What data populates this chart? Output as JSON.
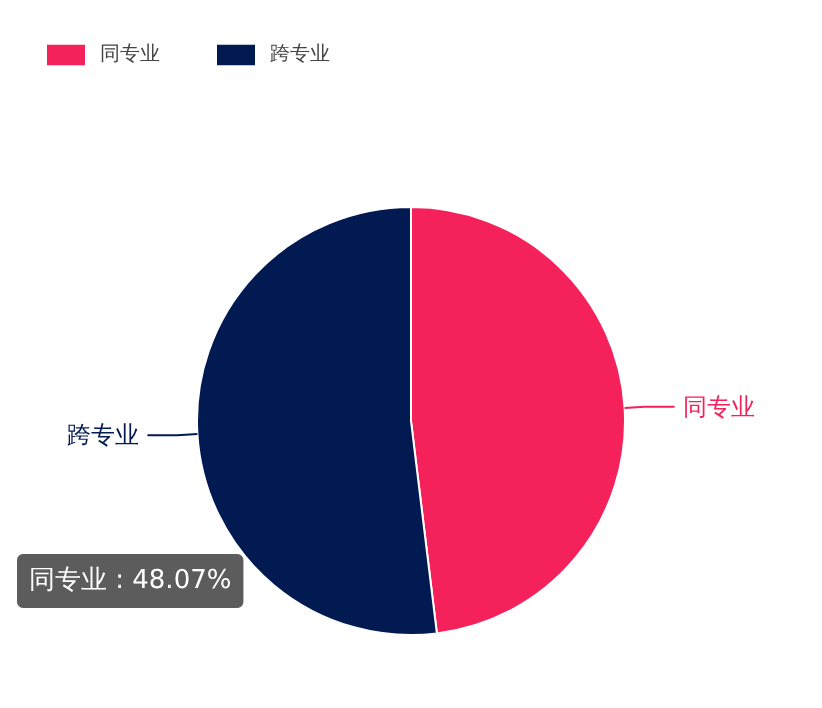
{
  "chart_data": {
    "type": "pie",
    "categories": [
      "同专业",
      "跨专业"
    ],
    "values": [
      48.07,
      51.93
    ],
    "colors": [
      "#f5215a",
      "#021a52"
    ],
    "legend": "top left",
    "annotations": [
      "同专业 : 48.07%"
    ]
  }
}
